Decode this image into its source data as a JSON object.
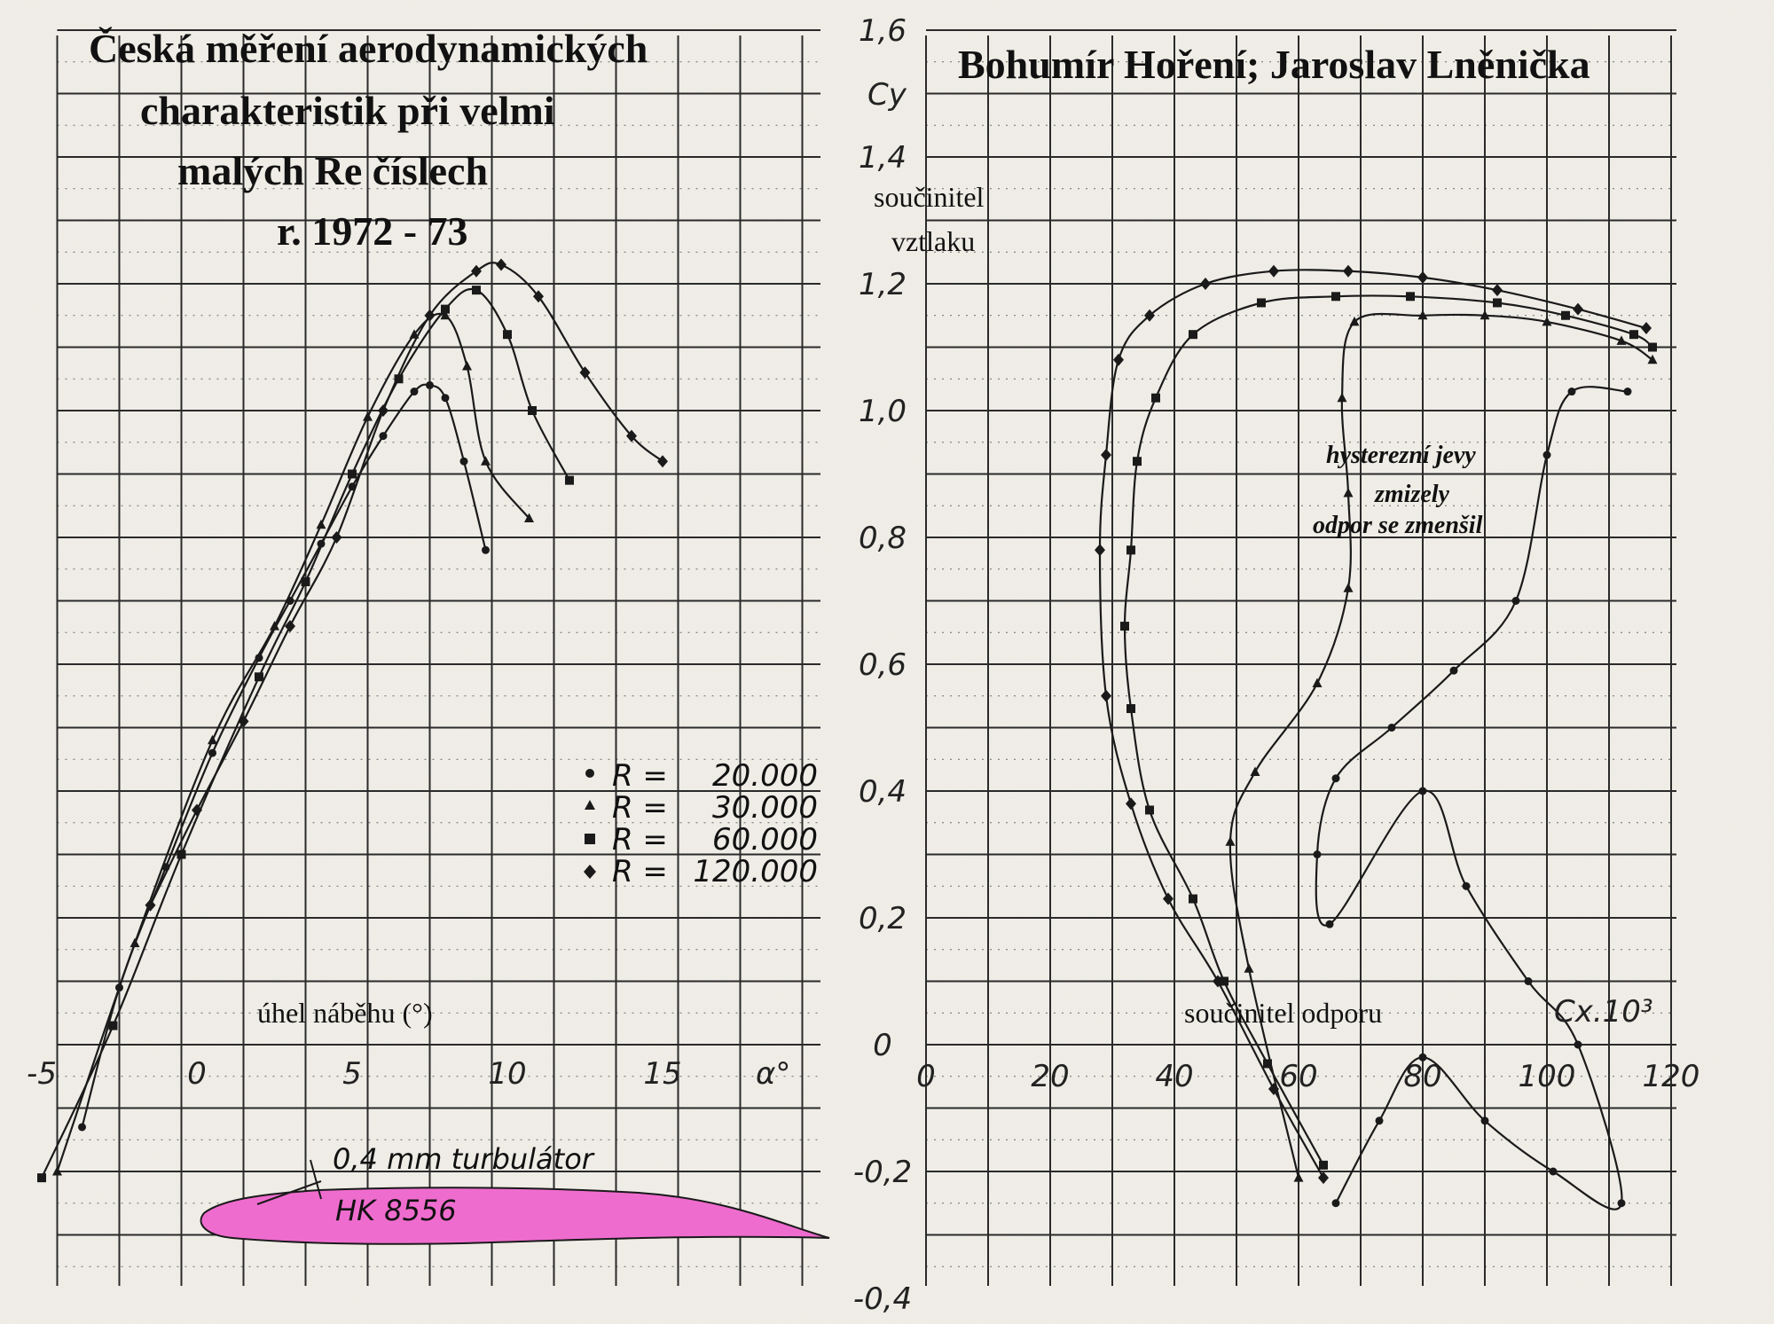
{
  "header": {
    "left_title_lines": [
      "Česká měření aerodynamických",
      "charakteristik při velmi",
      "malých Re číslech",
      "r. 1972 - 73"
    ],
    "right_title": "Bohumír Hoření; Jaroslav Lněnička"
  },
  "airfoil": {
    "name": "HK 8556",
    "turbulator_label": "0,4 mm turbulátor",
    "color": "#ef6ccf"
  },
  "annotations": {
    "hysteresis_lines": [
      "hysterezní jevy",
      "zmizely",
      "odpor se zmenšil"
    ]
  },
  "legend": {
    "items": [
      {
        "symbol": "circle",
        "label_prefix": "R =",
        "value": "20.000"
      },
      {
        "symbol": "triangle",
        "label_prefix": "R =",
        "value": "30.000"
      },
      {
        "symbol": "square",
        "label_prefix": "R =",
        "value": "60.000"
      },
      {
        "symbol": "diamond",
        "label_prefix": "R =",
        "value": "120.000"
      }
    ]
  },
  "chart_data": [
    {
      "type": "line",
      "xlabel_symbol": "α°",
      "xlabel_text": "úhel  náběhu  (°)",
      "ylabel_symbol": "Cy",
      "ylabel_text": [
        "součinitel",
        "vztlaku"
      ],
      "x_ticks": [
        "-5",
        "0",
        "5",
        "10",
        "15"
      ],
      "y_ticks": [
        "1,6",
        "1,4",
        "1,2",
        "1,0",
        "0,8",
        "0,6",
        "0,4",
        "0,2",
        "0",
        "-0,2",
        "-0,4"
      ],
      "xlim": [
        -5,
        19
      ],
      "ylim": [
        -0.38,
        1.6
      ],
      "grid": true,
      "legend_position": "center-right",
      "series": [
        {
          "name": "R = 20.000",
          "marker": "circle",
          "x": [
            -3.7,
            -2.5,
            -1,
            0.5,
            2,
            3,
            4,
            5,
            6,
            7,
            7.5,
            8,
            8.6,
            9.3
          ],
          "y": [
            -0.13,
            0.09,
            0.28,
            0.46,
            0.61,
            0.7,
            0.79,
            0.88,
            0.96,
            1.03,
            1.04,
            1.02,
            0.92,
            0.78
          ]
        },
        {
          "name": "R = 30.000",
          "marker": "triangle",
          "x": [
            -4.5,
            -2,
            0.5,
            2.5,
            4,
            5.5,
            7,
            8,
            8.7,
            9.3,
            10.7
          ],
          "y": [
            -0.2,
            0.16,
            0.48,
            0.66,
            0.82,
            0.99,
            1.12,
            1.15,
            1.07,
            0.92,
            0.83
          ]
        },
        {
          "name": "R = 60.000",
          "marker": "square",
          "x": [
            -5,
            -2.7,
            -0.5,
            2,
            3.5,
            5,
            6.5,
            8,
            9,
            10,
            10.8,
            12
          ],
          "y": [
            -0.21,
            0.03,
            0.3,
            0.58,
            0.73,
            0.9,
            1.05,
            1.16,
            1.19,
            1.12,
            1.0,
            0.89
          ]
        },
        {
          "name": "R = 120.000",
          "marker": "diamond",
          "x": [
            -1.5,
            0,
            1.5,
            3,
            4.5,
            6,
            7.5,
            9,
            9.8,
            11,
            12.5,
            14,
            15
          ],
          "y": [
            0.22,
            0.37,
            0.51,
            0.66,
            0.8,
            1.0,
            1.15,
            1.22,
            1.23,
            1.18,
            1.06,
            0.96,
            0.92
          ]
        }
      ]
    },
    {
      "type": "line",
      "xlabel_symbol": "Cx.10³",
      "xlabel_text": "součinitel odporu",
      "x_ticks": [
        "0",
        "20",
        "40",
        "60",
        "80",
        "100",
        "120"
      ],
      "xlim": [
        0,
        120
      ],
      "ylim": [
        -0.38,
        1.6
      ],
      "grid": true,
      "series": [
        {
          "name": "R = 20.000",
          "marker": "circle",
          "x": [
            66,
            73,
            80,
            90,
            101,
            112,
            105,
            97,
            87,
            80,
            65,
            63,
            66,
            75,
            85,
            95,
            100,
            104,
            113
          ],
          "y": [
            -0.25,
            -0.12,
            -0.02,
            -0.12,
            -0.2,
            -0.25,
            0.0,
            0.1,
            0.25,
            0.4,
            0.19,
            0.3,
            0.42,
            0.5,
            0.59,
            0.7,
            0.93,
            1.03,
            1.03
          ]
        },
        {
          "name": "R = 30.000",
          "marker": "triangle",
          "x": [
            60,
            52,
            49,
            53,
            63,
            68,
            68,
            67,
            69,
            80,
            90,
            100,
            112,
            117
          ],
          "y": [
            -0.21,
            0.12,
            0.32,
            0.43,
            0.57,
            0.72,
            0.87,
            1.02,
            1.14,
            1.15,
            1.15,
            1.14,
            1.11,
            1.08
          ]
        },
        {
          "name": "R = 60.000",
          "marker": "square",
          "x": [
            64,
            55,
            48,
            43,
            36,
            33,
            32,
            33,
            34,
            37,
            43,
            54,
            66,
            78,
            92,
            103,
            114,
            117
          ],
          "y": [
            -0.19,
            -0.03,
            0.1,
            0.23,
            0.37,
            0.53,
            0.66,
            0.78,
            0.92,
            1.02,
            1.12,
            1.17,
            1.18,
            1.18,
            1.17,
            1.15,
            1.12,
            1.1
          ]
        },
        {
          "name": "R = 120.000",
          "marker": "diamond",
          "x": [
            64,
            56,
            47,
            39,
            33,
            29,
            28,
            29,
            31,
            36,
            45,
            56,
            68,
            80,
            92,
            105,
            116
          ],
          "y": [
            -0.21,
            -0.07,
            0.1,
            0.23,
            0.38,
            0.55,
            0.78,
            0.93,
            1.08,
            1.15,
            1.2,
            1.22,
            1.22,
            1.21,
            1.19,
            1.16,
            1.13
          ]
        }
      ]
    }
  ]
}
